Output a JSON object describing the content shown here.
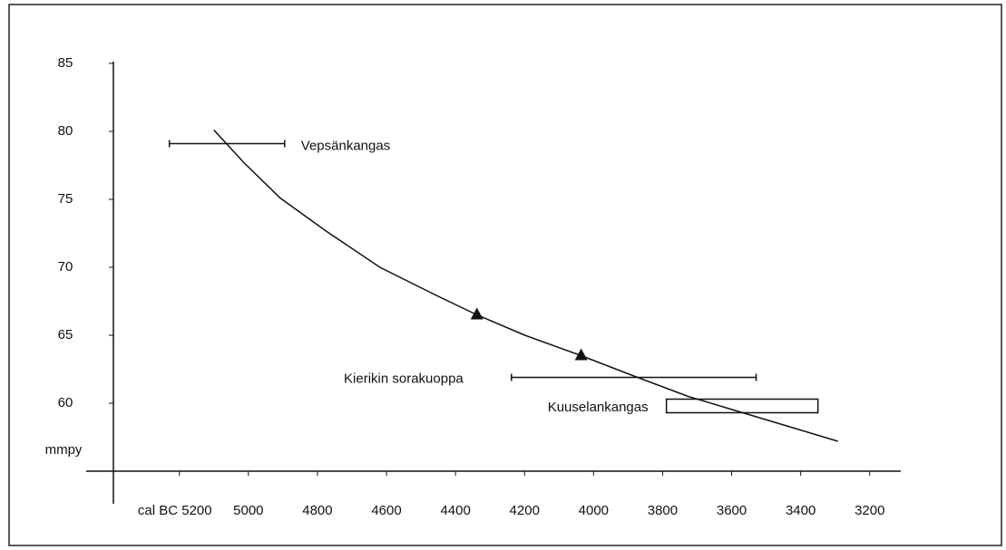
{
  "chart_data": {
    "type": "line",
    "y_label": "mmpy",
    "xlim": [
      5470,
      3110
    ],
    "ylim": [
      55,
      85
    ],
    "xticks": [
      {
        "value": 5200,
        "label": "cal BC 5200"
      },
      5000,
      4800,
      4600,
      4400,
      4200,
      4000,
      3800,
      3600,
      3400,
      3200
    ],
    "yticks": [
      60,
      65,
      70,
      75,
      80,
      85
    ],
    "color": "#111111",
    "x": [
      5100,
      5013,
      4908,
      4777,
      4619,
      4461,
      4338,
      4199,
      4036,
      3883,
      3726,
      3568,
      3410,
      3292
    ],
    "values": [
      80.1,
      77.7,
      75.1,
      72.7,
      70.0,
      68.0,
      66.5,
      65.0,
      63.5,
      62.0,
      60.5,
      59.3,
      58.1,
      57.2
    ],
    "markers": {
      "x": [
        4338,
        4036
      ],
      "values": [
        66.5,
        63.5
      ]
    },
    "ranges": [
      {
        "name": "Vepsänkangas",
        "from": 5229,
        "to": 4895,
        "value": 79.1
      },
      {
        "name": "Kierikin sorakuoppa",
        "from": 4238,
        "to": 3529,
        "value": 61.9
      },
      {
        "name": "Kuuselankangas",
        "from": 3789,
        "to": 3350,
        "low": 59.3,
        "high": 60.3
      }
    ]
  }
}
